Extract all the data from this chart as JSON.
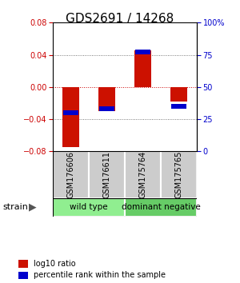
{
  "title": "GDS2691 / 14268",
  "samples": [
    "GSM176606",
    "GSM176611",
    "GSM175764",
    "GSM175765"
  ],
  "groups": [
    {
      "name": "wild type",
      "color": "#90EE90"
    },
    {
      "name": "dominant negative",
      "color": "#66CC66"
    }
  ],
  "group_label": "strain",
  "log10_ratios": [
    -0.075,
    -0.03,
    0.046,
    -0.018
  ],
  "percentile_ranks": [
    30,
    33,
    77,
    35
  ],
  "ylim": [
    -0.08,
    0.08
  ],
  "yticks_left": [
    -0.08,
    -0.04,
    0,
    0.04,
    0.08
  ],
  "yticks_right": [
    0,
    25,
    50,
    75,
    100
  ],
  "bar_color_red": "#CC1100",
  "bar_color_blue": "#0000CC",
  "zero_line_color": "#CC0000",
  "dotted_line_color": "#555555",
  "bg_color": "#FFFFFF",
  "legend_red_label": "log10 ratio",
  "legend_blue_label": "percentile rank within the sample",
  "bar_width": 0.45,
  "sample_box_color": "#CCCCCC",
  "title_fontsize": 11,
  "tick_fontsize": 7,
  "sample_fontsize": 7,
  "group_fontsize": 7.5,
  "legend_fontsize": 7
}
